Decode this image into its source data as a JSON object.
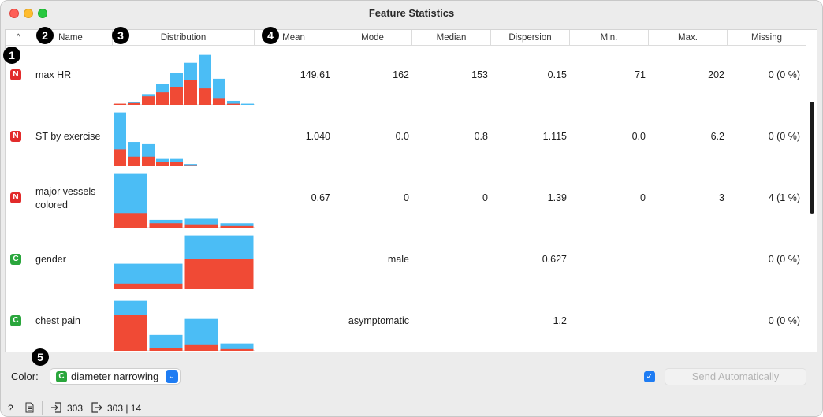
{
  "window": {
    "title": "Feature Statistics"
  },
  "table": {
    "columns": [
      {
        "key": "name",
        "label": "Name"
      },
      {
        "key": "distribution",
        "label": "Distribution"
      },
      {
        "key": "mean",
        "label": "Mean"
      },
      {
        "key": "mode",
        "label": "Mode"
      },
      {
        "key": "median",
        "label": "Median"
      },
      {
        "key": "dispersion",
        "label": "Dispersion"
      },
      {
        "key": "min",
        "label": "Min."
      },
      {
        "key": "max",
        "label": "Max."
      },
      {
        "key": "missing",
        "label": "Missing"
      }
    ],
    "sort_indicator": "^",
    "rows": [
      {
        "type": "N",
        "name": "max HR",
        "mean": "149.61",
        "mode": "162",
        "median": "153",
        "dispersion": "0.15",
        "min": "71",
        "max": "202",
        "missing": "0 (0 %)"
      },
      {
        "type": "N",
        "name": "ST by exercise",
        "mean": "1.040",
        "mode": "0.0",
        "median": "0.8",
        "dispersion": "1.115",
        "min": "0.0",
        "max": "6.2",
        "missing": "0 (0 %)"
      },
      {
        "type": "N",
        "name": "major vessels colored",
        "mean": "0.67",
        "mode": "0",
        "median": "0",
        "dispersion": "1.39",
        "min": "0",
        "max": "3",
        "missing": "4 (1 %)"
      },
      {
        "type": "C",
        "name": "gender",
        "mean": "",
        "mode": "male",
        "median": "",
        "dispersion": "0.627",
        "min": "",
        "max": "",
        "missing": "0 (0 %)"
      },
      {
        "type": "C",
        "name": "chest pain",
        "mean": "",
        "mode": "asymptomatic",
        "median": "",
        "dispersion": "1.2",
        "min": "",
        "max": "",
        "missing": "0 (0 %)"
      }
    ]
  },
  "histograms": {
    "colors": {
      "blue": "#4bbdf5",
      "red": "#f04a35"
    },
    "rows": [
      [
        [
          0.01,
          0.02
        ],
        [
          0.05,
          0.03
        ],
        [
          0.19,
          0.15
        ],
        [
          0.37,
          0.22
        ],
        [
          0.56,
          0.31
        ],
        [
          0.74,
          0.44
        ],
        [
          0.88,
          0.29
        ],
        [
          0.46,
          0.12
        ],
        [
          0.07,
          0.02
        ],
        [
          0.02,
          0.0
        ]
      ],
      [
        [
          0.95,
          0.3
        ],
        [
          0.43,
          0.17
        ],
        [
          0.39,
          0.17
        ],
        [
          0.13,
          0.07
        ],
        [
          0.13,
          0.08
        ],
        [
          0.04,
          0.02
        ],
        [
          0.01,
          0.01
        ],
        [
          0.0,
          0.0
        ],
        [
          0.01,
          0.01
        ],
        [
          0.01,
          0.01
        ]
      ],
      [
        [
          0.95,
          0.26
        ],
        [
          0.14,
          0.08
        ],
        [
          0.16,
          0.06
        ],
        [
          0.08,
          0.03
        ]
      ],
      [
        [
          0.45,
          0.1
        ],
        [
          0.95,
          0.54
        ]
      ],
      [
        [
          0.88,
          0.63
        ],
        [
          0.28,
          0.05
        ],
        [
          0.56,
          0.1
        ],
        [
          0.13,
          0.03
        ]
      ]
    ]
  },
  "markers": [
    "1",
    "2",
    "3",
    "4",
    "5"
  ],
  "controls": {
    "color_label": "Color:",
    "color_badge": "C",
    "color_value": "diameter narrowing",
    "send_checked": true,
    "send_button": "Send Automatically"
  },
  "status": {
    "input_count": "303",
    "output_count": "303 | 14"
  },
  "icons": [
    "help-icon",
    "report-icon",
    "input-icon",
    "output-icon",
    "dropdown-icon",
    "checkmark-icon"
  ]
}
